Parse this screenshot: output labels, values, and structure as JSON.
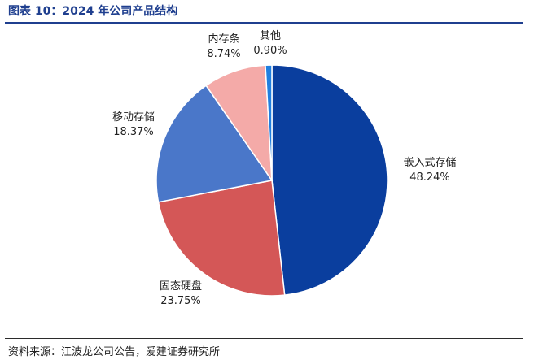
{
  "header": {
    "title": "图表 10：2024 年公司产品结构"
  },
  "footer": {
    "source": "资料来源：江波龙公司公告，爱建证券研究所"
  },
  "chart_data": {
    "type": "pie",
    "title": "图表 10：2024 年公司产品结构",
    "slices": [
      {
        "name": "嵌入式存储",
        "value": 48.24,
        "pct_label": "48.24%",
        "color": "#0a3e9e"
      },
      {
        "name": "固态硬盘",
        "value": 23.75,
        "pct_label": "23.75%",
        "color": "#d45757"
      },
      {
        "name": "移动存储",
        "value": 18.37,
        "pct_label": "18.37%",
        "color": "#4a77c9"
      },
      {
        "name": "内存条",
        "value": 8.74,
        "pct_label": "8.74%",
        "color": "#f4aaa8"
      },
      {
        "name": "其他",
        "value": 0.9,
        "pct_label": "0.90%",
        "color": "#1f7fe0"
      }
    ]
  }
}
